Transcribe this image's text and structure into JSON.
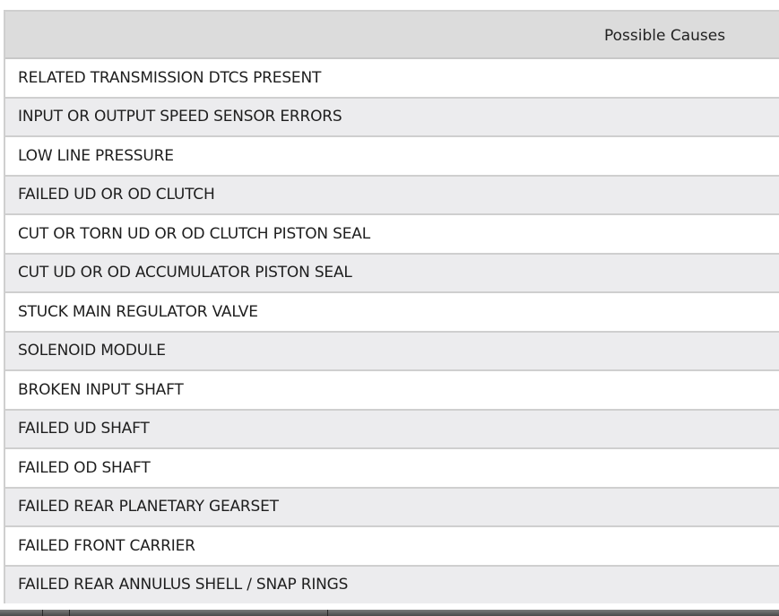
{
  "table": {
    "header": "Possible Causes",
    "rows": [
      "RELATED TRANSMISSION DTCS PRESENT",
      "INPUT OR OUTPUT SPEED SENSOR ERRORS",
      "LOW LINE PRESSURE",
      "FAILED UD OR OD CLUTCH",
      "CUT OR TORN UD OR OD CLUTCH PISTON SEAL",
      "CUT UD OR OD ACCUMULATOR PISTON SEAL",
      "STUCK MAIN REGULATOR VALVE",
      "SOLENOID MODULE",
      "BROKEN INPUT SHAFT",
      "FAILED UD SHAFT",
      "FAILED OD SHAFT",
      "FAILED REAR PLANETARY GEARSET",
      "FAILED FRONT CARRIER",
      "FAILED REAR ANNULUS SHELL / SNAP RINGS"
    ]
  }
}
